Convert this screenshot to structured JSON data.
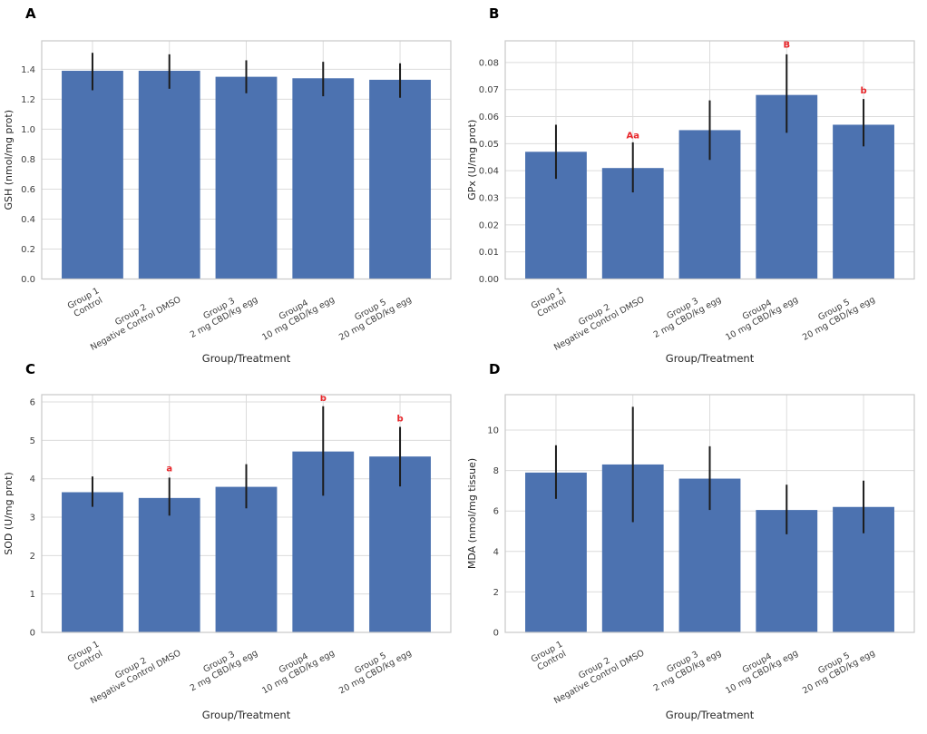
{
  "style": {
    "background": "#ffffff",
    "bar_color": "#4c72b0",
    "error_color": "#1c1c1c",
    "annotation_color": "#e8262a",
    "grid_color": "#dcdcdc",
    "spine_color": "#c9c9c9",
    "tick_text_color": "#3d3d3d",
    "axis_label_color": "#262626",
    "panel_letter_color": "#000000"
  },
  "chart_data": [
    {
      "panel_label": "A",
      "type": "bar",
      "ylabel": "GSH  (nmol/mg prot)",
      "xlabel": "Group/Treatment",
      "categories": [
        "Group 1\nControl",
        "Group 2\nNegative Control DMSO",
        "Group 3\n2 mg CBD/kg egg",
        "Group4\n10 mg CBD/kg egg",
        "Group 5\n20 mg CBD/kg egg"
      ],
      "values": [
        1.39,
        1.39,
        1.35,
        1.34,
        1.33
      ],
      "errors_low": [
        1.26,
        1.27,
        1.24,
        1.22,
        1.21
      ],
      "errors_high": [
        1.51,
        1.5,
        1.46,
        1.45,
        1.44
      ],
      "ylim": [
        0,
        1.59
      ],
      "yticks": [
        0.0,
        0.2,
        0.4,
        0.6,
        0.8,
        1.0,
        1.2,
        1.4
      ],
      "ytick_labels": [
        "0.0",
        "0.2",
        "0.4",
        "0.6",
        "0.8",
        "1.0",
        "1.2",
        "1.4"
      ],
      "grid": true,
      "annotations": []
    },
    {
      "panel_label": "B",
      "type": "bar",
      "ylabel": "GPx  (U/mg prot)",
      "xlabel": "Group/Treatment",
      "categories": [
        "Group 1\nControl",
        "Group 2\nNegative Control DMSO",
        "Group 3\n2 mg CBD/kg egg",
        "Group4\n10 mg CBD/kg egg",
        "Group 5\n20 mg CBD/kg egg"
      ],
      "values": [
        0.047,
        0.041,
        0.055,
        0.068,
        0.057
      ],
      "errors_low": [
        0.037,
        0.032,
        0.044,
        0.054,
        0.049
      ],
      "errors_high": [
        0.057,
        0.0505,
        0.066,
        0.083,
        0.0665
      ],
      "ylim": [
        0,
        0.088
      ],
      "yticks": [
        0.0,
        0.01,
        0.02,
        0.03,
        0.04,
        0.05,
        0.06,
        0.07,
        0.08
      ],
      "ytick_labels": [
        "0.00",
        "0.01",
        "0.02",
        "0.03",
        "0.04",
        "0.05",
        "0.06",
        "0.07",
        "0.08"
      ],
      "grid": true,
      "annotations": [
        {
          "bar_index": 1,
          "text": "Aa",
          "y": 0.052
        },
        {
          "bar_index": 3,
          "text": "B",
          "y": 0.0855
        },
        {
          "bar_index": 4,
          "text": "b",
          "y": 0.0685
        }
      ]
    },
    {
      "panel_label": "C",
      "type": "bar",
      "ylabel": "SOD  (U/mg prot)",
      "xlabel": "Group/Treatment",
      "categories": [
        "Group 1\nControl",
        "Group 2\nNegative Control DMSO",
        "Group 3\n2 mg CBD/kg egg",
        "Group4\n10 mg CBD/kg egg",
        "Group 5\n20 mg CBD/kg egg"
      ],
      "values": [
        3.65,
        3.5,
        3.79,
        4.71,
        4.58
      ],
      "errors_low": [
        3.27,
        3.04,
        3.23,
        3.56,
        3.8
      ],
      "errors_high": [
        4.06,
        4.03,
        4.38,
        5.89,
        5.35
      ],
      "ylim": [
        0,
        6.19
      ],
      "yticks": [
        0,
        1,
        2,
        3,
        4,
        5,
        6
      ],
      "ytick_labels": [
        "0",
        "1",
        "2",
        "3",
        "4",
        "5",
        "6"
      ],
      "grid": true,
      "annotations": [
        {
          "bar_index": 1,
          "text": "a",
          "y": 4.19
        },
        {
          "bar_index": 3,
          "text": "b",
          "y": 6.03
        },
        {
          "bar_index": 4,
          "text": "b",
          "y": 5.49
        }
      ]
    },
    {
      "panel_label": "D",
      "type": "bar",
      "ylabel": "MDA (nmol/mg tissue)",
      "xlabel": "Group/Treatment",
      "categories": [
        "Group 1\nControl",
        "Group 2\nNegative Control DMSO",
        "Group 3\n2 mg CBD/kg egg",
        "Group4\n10 mg CBD/kg egg",
        "Group 5\n20 mg CBD/kg egg"
      ],
      "values": [
        7.9,
        8.3,
        7.6,
        6.05,
        6.2
      ],
      "errors_low": [
        6.6,
        5.45,
        6.05,
        4.85,
        4.9
      ],
      "errors_high": [
        9.25,
        11.15,
        9.2,
        7.3,
        7.5
      ],
      "ylim": [
        0,
        11.75
      ],
      "yticks": [
        0,
        2,
        4,
        6,
        8,
        10
      ],
      "ytick_labels": [
        "0",
        "2",
        "4",
        "6",
        "8",
        "10"
      ],
      "grid": true,
      "annotations": []
    }
  ]
}
